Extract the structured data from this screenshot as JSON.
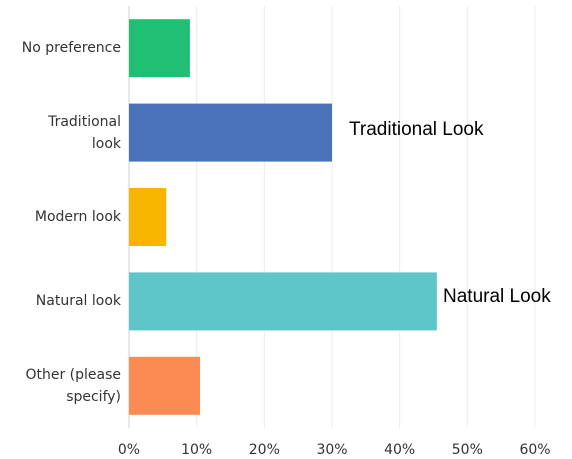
{
  "chart_data": {
    "type": "bar",
    "orientation": "horizontal",
    "categories": [
      "No preference",
      "Traditional look",
      "Modern look",
      "Natural look",
      "Other (please specify)"
    ],
    "values": [
      9,
      30,
      5.5,
      45.5,
      10.5
    ],
    "colors": [
      "#21bf73",
      "#4a72b8",
      "#f7b500",
      "#5ec6c8",
      "#f98b53"
    ],
    "xlim": [
      0,
      60
    ],
    "xticks": [
      {
        "value": 0,
        "label": "0%"
      },
      {
        "value": 10,
        "label": "10%"
      },
      {
        "value": 20,
        "label": "20%"
      },
      {
        "value": 30,
        "label": "30%"
      },
      {
        "value": 40,
        "label": "40%"
      },
      {
        "value": 50,
        "label": "50%"
      },
      {
        "value": 60,
        "label": "60%"
      }
    ],
    "grid": true,
    "annotations": [
      {
        "text": "Traditional Look"
      },
      {
        "text": "Natural Look"
      }
    ]
  }
}
